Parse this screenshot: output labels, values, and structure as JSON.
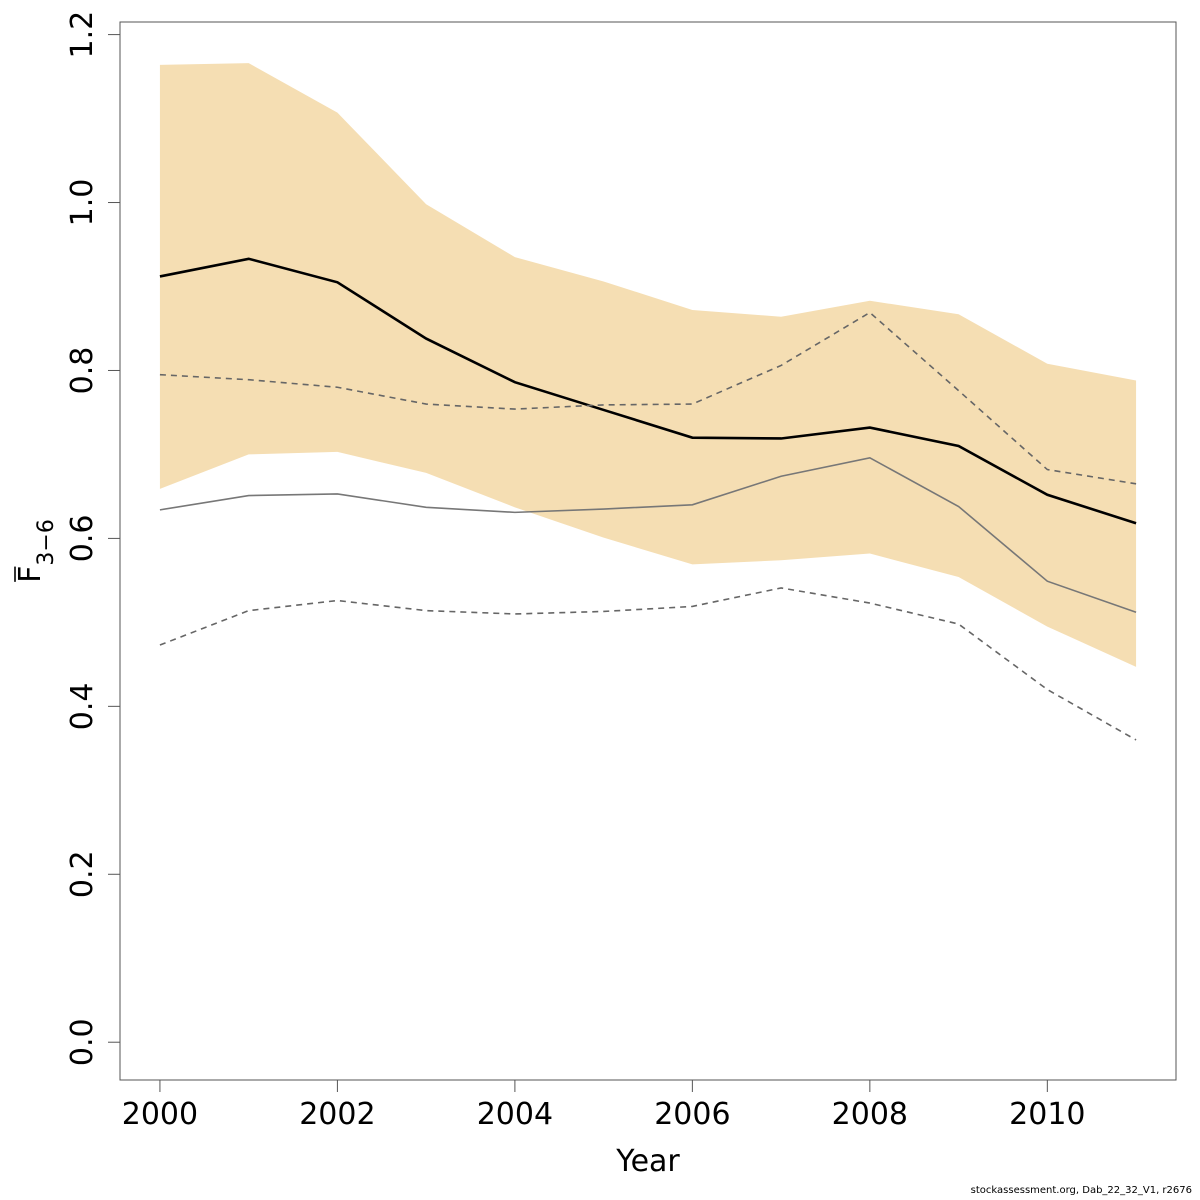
{
  "chart_data": {
    "type": "line",
    "title": "",
    "xlabel": "Year",
    "ylabel": {
      "main": "F",
      "subscript": "3−6"
    },
    "xlim": [
      1999.55,
      2011.45
    ],
    "ylim": [
      -0.045,
      1.215
    ],
    "x_ticks": [
      2000,
      2002,
      2004,
      2006,
      2008,
      2010
    ],
    "y_ticks": [
      0.0,
      0.2,
      0.4,
      0.6,
      0.8,
      1.0,
      1.2
    ],
    "x_tick_labels": [
      "2000",
      "2002",
      "2004",
      "2006",
      "2008",
      "2010"
    ],
    "y_tick_labels": [
      "0.0",
      "0.2",
      "0.4",
      "0.6",
      "0.8",
      "1.0",
      "1.2"
    ],
    "grid": false,
    "legend": "none",
    "x": [
      2000,
      2001,
      2002,
      2003,
      2004,
      2005,
      2006,
      2007,
      2008,
      2009,
      2010,
      2011
    ],
    "band": {
      "color": "#f5deb3",
      "upper": [
        1.164,
        1.166,
        1.107,
        0.998,
        0.935,
        0.906,
        0.872,
        0.864,
        0.883,
        0.867,
        0.808,
        0.788
      ],
      "lower": [
        0.659,
        0.7,
        0.703,
        0.678,
        0.637,
        0.601,
        0.569,
        0.574,
        0.582,
        0.554,
        0.495,
        0.447
      ]
    },
    "series": [
      {
        "style": "solid-thick",
        "color": "#000000",
        "values": [
          0.912,
          0.933,
          0.905,
          0.838,
          0.786,
          0.753,
          0.72,
          0.719,
          0.732,
          0.71,
          0.652,
          0.618
        ]
      },
      {
        "style": "solid-thin",
        "color": "#777777",
        "values": [
          0.634,
          0.651,
          0.653,
          0.637,
          0.631,
          0.635,
          0.64,
          0.674,
          0.696,
          0.638,
          0.549,
          0.512
        ]
      },
      {
        "style": "dashed",
        "color": "#666666",
        "values": [
          0.795,
          0.789,
          0.78,
          0.76,
          0.754,
          0.759,
          0.76,
          0.806,
          0.869,
          0.776,
          0.682,
          0.665
        ]
      },
      {
        "style": "dashed",
        "color": "#666666",
        "values": [
          0.473,
          0.514,
          0.526,
          0.514,
          0.51,
          0.513,
          0.519,
          0.541,
          0.523,
          0.498,
          0.42,
          0.36
        ]
      }
    ]
  },
  "footer": {
    "text": "stockassessment.org, Dab_22_32_V1, r2676"
  }
}
